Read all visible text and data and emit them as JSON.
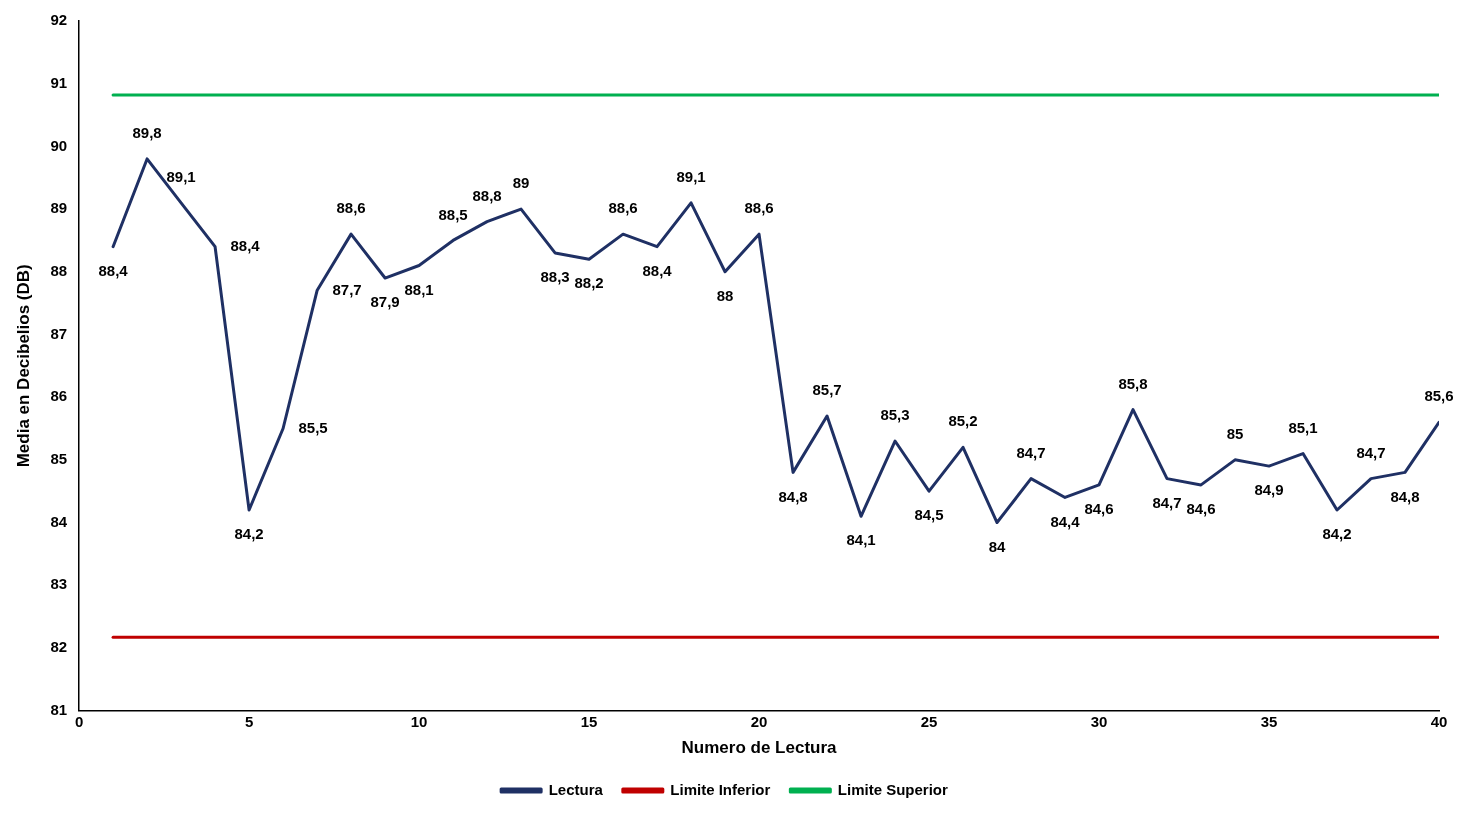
{
  "chart_data": {
    "type": "line",
    "xlabel": "Numero de Lectura",
    "ylabel": "Media en Decibelios (DB)",
    "xlim": [
      0,
      40
    ],
    "xticks": [
      0,
      5,
      10,
      15,
      20,
      25,
      30,
      35,
      40
    ],
    "ylim": [
      81,
      92
    ],
    "yticks": [
      81,
      82,
      83,
      84,
      85,
      86,
      87,
      88,
      89,
      90,
      91,
      92
    ],
    "grid": false,
    "legend": "bottom",
    "marker": "none",
    "line_style": "solid",
    "series": [
      {
        "name": "Lectura",
        "color": "#1f3064",
        "x": [
          1,
          2,
          3,
          4,
          5,
          6,
          7,
          8,
          9,
          10,
          11,
          12,
          13,
          14,
          15,
          16,
          17,
          18,
          19,
          20,
          21,
          22,
          23,
          24,
          25,
          26,
          27,
          28,
          29,
          30,
          31,
          32,
          33,
          34,
          35,
          36,
          37,
          38,
          39,
          40
        ],
        "values": [
          88.4,
          89.8,
          89.1,
          88.4,
          84.2,
          85.5,
          87.7,
          88.6,
          87.9,
          88.1,
          88.5,
          88.8,
          89,
          88.3,
          88.2,
          88.6,
          88.4,
          89.1,
          88,
          88.6,
          84.8,
          85.7,
          84.1,
          85.3,
          84.5,
          85.2,
          84,
          84.7,
          84.4,
          84.6,
          85.8,
          84.7,
          84.6,
          85,
          84.9,
          85.1,
          84.2,
          84.7,
          84.8,
          85.6
        ],
        "value_labels": [
          "88,4",
          "89,8",
          "89,1",
          "88,4",
          "84,2",
          "85,5",
          "87,7",
          "88,6",
          "87,9",
          "88,1",
          "88,5",
          "88,8",
          "89",
          "88,3",
          "88,2",
          "88,6",
          "88,4",
          "89,1",
          "88",
          "88,6",
          "84,8",
          "85,7",
          "84,1",
          "85,3",
          "84,5",
          "85,2",
          "84",
          "84,7",
          "84,4",
          "84,6",
          "85,8",
          "84,7",
          "84,6",
          "85",
          "84,9",
          "85,1",
          "84,2",
          "84,7",
          "84,8",
          "85,6"
        ]
      },
      {
        "name": "Limite Inferior",
        "color": "#c00000",
        "x": [
          1,
          40
        ],
        "values": [
          82.17,
          82.17
        ]
      },
      {
        "name": "Limite Superior",
        "color": "#00b050",
        "x": [
          1,
          40
        ],
        "values": [
          90.82,
          90.82
        ]
      }
    ]
  }
}
